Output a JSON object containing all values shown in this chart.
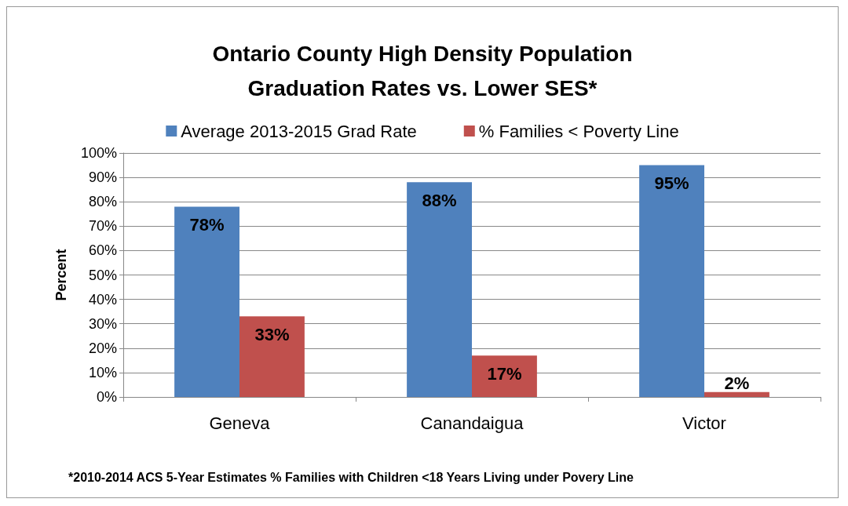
{
  "chart_data": {
    "type": "bar",
    "title": "Ontario County High Density Population\nGraduation Rates vs. Lower SES*",
    "ylabel": "Percent",
    "categories": [
      "Geneva",
      "Canandaigua",
      "Victor"
    ],
    "series": [
      {
        "name": "Average 2013-2015 Grad Rate",
        "color": "#4f81bd",
        "values": [
          78,
          88,
          95
        ],
        "value_labels": [
          "78%",
          "88%",
          "95%"
        ]
      },
      {
        "name": "% Families < Poverty Line",
        "color": "#c0504d",
        "values": [
          33,
          17,
          2
        ],
        "value_labels": [
          "33%",
          "17%",
          "2%"
        ]
      }
    ],
    "ylim": [
      0,
      100
    ],
    "yticks": [
      {
        "value": 0,
        "label": "0%"
      },
      {
        "value": 10,
        "label": "10%"
      },
      {
        "value": 20,
        "label": "20%"
      },
      {
        "value": 30,
        "label": "30%"
      },
      {
        "value": 40,
        "label": "40%"
      },
      {
        "value": 50,
        "label": "50%"
      },
      {
        "value": 60,
        "label": "60%"
      },
      {
        "value": 70,
        "label": "70%"
      },
      {
        "value": 80,
        "label": "80%"
      },
      {
        "value": 90,
        "label": "90%"
      },
      {
        "value": 100,
        "label": "100%"
      }
    ],
    "grid": "y",
    "legend": "top",
    "annotations": [
      "*2010-2014 ACS 5-Year Estimates % Families with Children <18 Years Living under Povery Line"
    ]
  }
}
